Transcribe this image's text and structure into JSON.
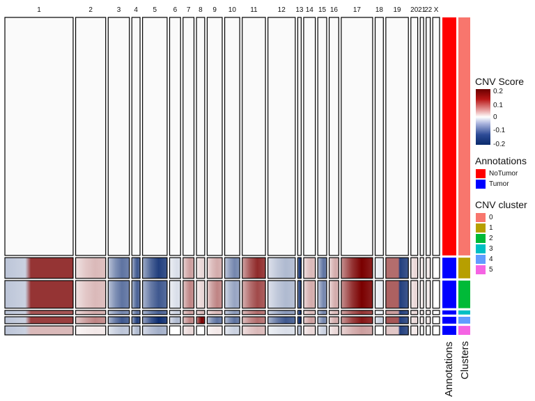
{
  "chart_data": {
    "type": "heatmap",
    "value_name": "CNV Score",
    "chromosomes": [
      "1",
      "2",
      "3",
      "4",
      "5",
      "6",
      "7",
      "8",
      "9",
      "10",
      "11",
      "12",
      "13",
      "14",
      "15",
      "16",
      "17",
      "18",
      "19",
      "20",
      "21",
      "22",
      "X"
    ],
    "chromosome_gene_weights": [
      10,
      4.4,
      3.1,
      1.2,
      3.6,
      1.6,
      1.6,
      1.2,
      2.2,
      2.2,
      3.4,
      4.0,
      0.5,
      1.7,
      1.3,
      1.4,
      4.6,
      1.2,
      3.3,
      1.0,
      0.5,
      0.6,
      1.0
    ],
    "cell_groups": [
      {
        "annotation": "NoTumor",
        "cluster": "0",
        "cells": 345
      },
      {
        "annotation": "Tumor",
        "cluster": "1",
        "cells": 30
      },
      {
        "annotation": "Tumor",
        "cluster": "2",
        "cells": 40
      },
      {
        "annotation": "Tumor",
        "cluster": "3",
        "cells": 6
      },
      {
        "annotation": "Tumor",
        "cluster": "4",
        "cells": 10
      },
      {
        "annotation": "Tumor",
        "cluster": "5",
        "cells": 13
      }
    ],
    "mean_cnv_score": [
      [
        0.0,
        0.0,
        0.0,
        0.0,
        0.0,
        0.0,
        0.0,
        0.0,
        0.0,
        0.0,
        0.0,
        0.0,
        0.0,
        0.0,
        0.0,
        0.0,
        0.0,
        0.0,
        0.0,
        0.0,
        0.0,
        0.0,
        0.0
      ],
      [
        0.15,
        0.04,
        -0.12,
        -0.15,
        -0.18,
        -0.02,
        0.06,
        0.02,
        0.05,
        -0.1,
        0.16,
        -0.05,
        -0.2,
        0.04,
        -0.12,
        0.05,
        0.2,
        -0.01,
        0.1,
        0.02,
        0.01,
        0.01,
        0.0
      ],
      [
        0.15,
        0.04,
        -0.12,
        -0.14,
        -0.15,
        -0.02,
        0.08,
        0.02,
        0.08,
        -0.07,
        0.13,
        -0.05,
        -0.18,
        0.05,
        -0.1,
        0.05,
        0.2,
        -0.01,
        0.11,
        0.02,
        0.01,
        0.01,
        0.0
      ],
      [
        0.12,
        0.05,
        -0.1,
        -0.12,
        -0.14,
        -0.03,
        0.06,
        0.04,
        0.04,
        -0.08,
        0.1,
        -0.08,
        -0.2,
        0.04,
        -0.1,
        0.04,
        0.15,
        -0.01,
        0.06,
        0.02,
        0.01,
        0.01,
        0.0
      ],
      [
        0.14,
        0.08,
        -0.15,
        -0.18,
        -0.2,
        -0.05,
        0.08,
        0.2,
        -0.12,
        -0.12,
        0.1,
        -0.15,
        -0.25,
        0.06,
        -0.1,
        0.05,
        0.18,
        -0.03,
        0.12,
        0.02,
        0.01,
        0.01,
        0.0
      ],
      [
        0.04,
        0.01,
        -0.04,
        -0.05,
        -0.06,
        0.0,
        0.02,
        0.0,
        0.01,
        -0.03,
        0.04,
        -0.02,
        -0.05,
        0.02,
        -0.03,
        0.02,
        0.06,
        0.0,
        0.03,
        0.01,
        0.0,
        0.0,
        0.0
      ]
    ],
    "colorbar": {
      "ticks": [
        "0.2",
        "0.1",
        "0",
        "-0.1",
        "-0.2"
      ],
      "colors": {
        "high": "#7a0000",
        "mid": "#ffffff",
        "low": "#0d2d72"
      }
    },
    "annotation_colors": {
      "NoTumor": "#ff0000",
      "Tumor": "#0000ff"
    },
    "cluster_colors": {
      "0": "#f8766d",
      "1": "#b79f00",
      "2": "#00ba38",
      "3": "#00bfc4",
      "4": "#619cff",
      "5": "#f564e3"
    }
  },
  "legend": {
    "cnv_score_title": "CNV Score",
    "annotations_title": "Annotations",
    "annotations_items": [
      "NoTumor",
      "Tumor"
    ],
    "cluster_title": "CNV cluster",
    "cluster_items": [
      "0",
      "1",
      "2",
      "3",
      "4",
      "5"
    ]
  },
  "side_labels": {
    "annotations": "Annotations",
    "clusters": "Clusters"
  }
}
